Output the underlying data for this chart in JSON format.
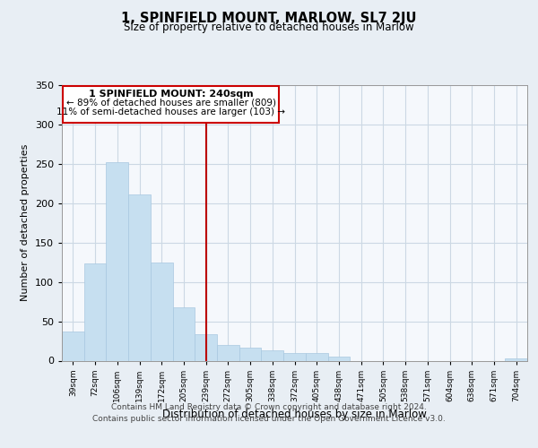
{
  "title": "1, SPINFIELD MOUNT, MARLOW, SL7 2JU",
  "subtitle": "Size of property relative to detached houses in Marlow",
  "xlabel": "Distribution of detached houses by size in Marlow",
  "ylabel": "Number of detached properties",
  "bar_color": "#c6dff0",
  "bar_edge_color": "#a8c8e0",
  "background_color": "#e8eef4",
  "plot_bg_color": "#f5f8fc",
  "grid_color": "#ccd8e4",
  "tick_labels": [
    "39sqm",
    "72sqm",
    "106sqm",
    "139sqm",
    "172sqm",
    "205sqm",
    "239sqm",
    "272sqm",
    "305sqm",
    "338sqm",
    "372sqm",
    "405sqm",
    "438sqm",
    "471sqm",
    "505sqm",
    "538sqm",
    "571sqm",
    "604sqm",
    "638sqm",
    "671sqm",
    "704sqm"
  ],
  "bar_values": [
    37,
    124,
    252,
    211,
    125,
    68,
    34,
    20,
    16,
    13,
    10,
    10,
    5,
    0,
    0,
    0,
    0,
    0,
    0,
    0,
    3
  ],
  "ylim": [
    0,
    350
  ],
  "yticks": [
    0,
    50,
    100,
    150,
    200,
    250,
    300,
    350
  ],
  "vline_index": 6,
  "vline_color": "#bb0000",
  "annotation_title": "1 SPINFIELD MOUNT: 240sqm",
  "annotation_line1": "← 89% of detached houses are smaller (809)",
  "annotation_line2": "11% of semi-detached houses are larger (103) →",
  "annotation_box_color": "#ffffff",
  "annotation_box_edge": "#cc0000",
  "footer_line1": "Contains HM Land Registry data © Crown copyright and database right 2024.",
  "footer_line2": "Contains public sector information licensed under the Open Government Licence v3.0."
}
